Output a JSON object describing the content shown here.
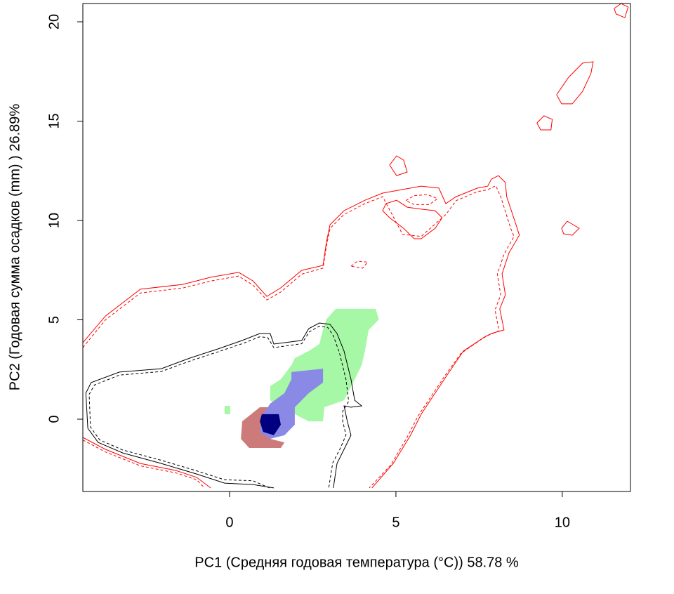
{
  "chart_data": {
    "type": "contour",
    "x_label": "PC1 (Средняя годовая температура (°C)) 58.78 %",
    "y_label": "PC2 (Годовая сумма осадков  (mm) ) 26.89%",
    "xlim": [
      -4.41,
      12.05
    ],
    "ylim": [
      -3.64,
      20.92
    ],
    "xticks": [
      0,
      5,
      10
    ],
    "yticks": [
      0,
      5,
      10,
      15,
      20
    ],
    "series": [
      {
        "color": "#a6f7a6",
        "fill": true,
        "dash": false,
        "x": [
          3.19,
          4.39,
          4.49,
          4.18,
          4.07,
          3.97,
          3.76,
          3.44,
          2.85,
          2.81,
          2.38,
          1.96,
          1.54,
          1.22,
          1.22,
          1.54,
          1.86,
          1.96,
          2.38,
          2.7,
          2.81,
          2.91
        ],
        "y": [
          5.55,
          5.55,
          5.02,
          4.49,
          3.43,
          2.72,
          2.01,
          0.95,
          0.6,
          -0.11,
          -0.11,
          0.25,
          0.6,
          0.95,
          1.66,
          2.01,
          2.72,
          3.07,
          3.43,
          3.78,
          4.49,
          5.02
        ]
      },
      {
        "color": "#a6f7a6",
        "fill": true,
        "dash": false,
        "x": [
          -0.15,
          0.02,
          0.02,
          -0.15
        ],
        "y": [
          0.67,
          0.67,
          0.25,
          0.25
        ]
      },
      {
        "color": "#cc7a7a",
        "fill": true,
        "dash": false,
        "x": [
          0.38,
          0.91,
          1.22,
          1.22,
          1.65,
          1.54,
          0.59,
          0.34
        ],
        "y": [
          -0.11,
          0.6,
          0.6,
          -0.99,
          -1.17,
          -1.45,
          -1.45,
          -0.99
        ]
      },
      {
        "color": "#8a8ae6",
        "fill": true,
        "dash": false,
        "x": [
          1.86,
          2.81,
          2.81,
          2.38,
          1.96,
          1.96,
          1.65,
          1.22,
          0.91,
          1.01,
          1.22,
          1.65,
          1.86
        ],
        "y": [
          2.37,
          2.54,
          1.84,
          1.31,
          0.6,
          -0.28,
          -0.81,
          -0.99,
          -0.64,
          0.25,
          0.78,
          1.31,
          2.01
        ]
      },
      {
        "color": "#000080",
        "fill": true,
        "dash": false,
        "x": [
          0.97,
          1.48,
          1.54,
          1.33,
          1.01,
          0.91
        ],
        "y": [
          0.25,
          0.25,
          -0.28,
          -0.81,
          -0.64,
          -0.11
        ]
      },
      {
        "color": "#ff0000",
        "fill": false,
        "dash": false,
        "x": [
          -4.41,
          -3.73,
          -2.68,
          -1.41,
          -0.57,
          0.27,
          0.7,
          1.12,
          1.54,
          2.17,
          2.81,
          2.91,
          3.02,
          3.44,
          4.07,
          4.6,
          5.76,
          6.29,
          6.5,
          6.81,
          7.45,
          7.76,
          7.87,
          8.08,
          8.29,
          8.33,
          8.61,
          8.71,
          8.4,
          8.19,
          8.29,
          8.12,
          8.25,
          7.87,
          7.66,
          7.03,
          6.6,
          6.18,
          5.76,
          5.44,
          4.92,
          4.28
        ],
        "y": [
          3.85,
          5.19,
          6.54,
          6.78,
          7.14,
          7.39,
          6.96,
          6.18,
          6.61,
          7.49,
          7.74,
          8.9,
          9.79,
          10.49,
          11.02,
          11.38,
          11.73,
          11.63,
          10.85,
          11.2,
          11.63,
          11.73,
          12.08,
          12.26,
          11.91,
          11.2,
          9.79,
          9.26,
          8.37,
          7.31,
          6.25,
          5.55,
          4.49,
          4.31,
          4.13,
          3.43,
          2.37,
          1.31,
          0.25,
          -0.81,
          -2.23,
          -3.46
        ]
      },
      {
        "color": "#ff0000",
        "fill": false,
        "dash": true,
        "x": [
          -4.41,
          -3.73,
          -2.68,
          -1.41,
          -0.57,
          0.27,
          0.7,
          1.12,
          1.54,
          2.17,
          2.81,
          2.91,
          3.02,
          3.44,
          4.07,
          4.6,
          5.2,
          5.76,
          6.5,
          6.81,
          7.45,
          7.76,
          8.0,
          8.15,
          8.45,
          8.55,
          8.25,
          8.05,
          8.15,
          7.98,
          8.1,
          7.75,
          7.55,
          6.95,
          6.5,
          6.08,
          5.66,
          5.34,
          4.85,
          4.2
        ],
        "y": [
          3.6,
          5.0,
          6.35,
          6.6,
          6.95,
          7.2,
          6.75,
          6.0,
          6.4,
          7.3,
          7.6,
          8.7,
          9.6,
          10.3,
          10.85,
          11.2,
          9.3,
          9.2,
          10.3,
          11.0,
          11.45,
          11.55,
          11.75,
          11.2,
          9.6,
          9.2,
          8.3,
          7.3,
          6.25,
          5.5,
          4.45,
          4.2,
          4.0,
          3.3,
          2.25,
          1.2,
          0.15,
          -0.9,
          -2.3,
          -3.46
        ]
      },
      {
        "color": "#ff0000",
        "fill": false,
        "dash": false,
        "x": [
          4.7,
          4.6,
          4.81,
          5.23,
          5.55,
          5.76,
          6.18,
          6.39,
          6.18,
          5.76,
          5.34,
          5.02,
          4.7
        ],
        "y": [
          10.85,
          10.49,
          10.14,
          9.61,
          9.08,
          9.08,
          9.61,
          10.14,
          10.49,
          10.57,
          10.67,
          11.02,
          10.85
        ]
      },
      {
        "color": "#ff0000",
        "fill": false,
        "dash": true,
        "x": [
          5.3,
          5.55,
          5.95,
          6.25,
          6.0,
          5.55,
          5.3
        ],
        "y": [
          11.0,
          11.25,
          11.3,
          11.1,
          10.8,
          10.8,
          11.0
        ]
      },
      {
        "color": "#ff0000",
        "fill": false,
        "dash": true,
        "x": [
          3.65,
          3.85,
          4.15,
          4.0,
          3.65
        ],
        "y": [
          7.7,
          7.95,
          7.9,
          7.6,
          7.7
        ]
      },
      {
        "color": "#ff0000",
        "fill": false,
        "dash": false,
        "x": [
          -4.41,
          -3.73,
          -2.68,
          -1.62,
          -0.99,
          -0.57
        ],
        "y": [
          -0.92,
          -1.52,
          -2.23,
          -2.58,
          -2.93,
          -3.46
        ]
      },
      {
        "color": "#ff0000",
        "fill": false,
        "dash": true,
        "x": [
          -4.41,
          -3.73,
          -2.68,
          -1.62,
          -0.99,
          -0.75
        ],
        "y": [
          -1.05,
          -1.65,
          -2.35,
          -2.7,
          -3.05,
          -3.46
        ]
      },
      {
        "color": "#ff0000",
        "fill": false,
        "dash": false,
        "x": [
          4.81,
          5.02,
          5.23,
          5.34,
          5.02,
          4.81
        ],
        "y": [
          12.79,
          13.25,
          13.04,
          12.44,
          12.26,
          12.79
        ]
      },
      {
        "color": "#ff0000",
        "fill": false,
        "dash": false,
        "x": [
          9.24,
          9.45,
          9.7,
          9.66,
          9.35,
          9.24
        ],
        "y": [
          14.91,
          15.27,
          15.09,
          14.56,
          14.56,
          14.91
        ]
      },
      {
        "color": "#ff0000",
        "fill": false,
        "dash": false,
        "x": [
          9.83,
          10.19,
          10.61,
          10.93,
          10.86,
          10.61,
          10.3,
          9.98,
          9.83
        ],
        "y": [
          16.33,
          17.21,
          17.92,
          17.99,
          17.39,
          16.5,
          15.87,
          15.87,
          16.33
        ]
      },
      {
        "color": "#ff0000",
        "fill": false,
        "dash": false,
        "x": [
          9.98,
          10.15,
          10.51,
          10.3,
          10.04,
          9.98
        ],
        "y": [
          9.61,
          9.96,
          9.61,
          9.26,
          9.33,
          9.61
        ]
      },
      {
        "color": "#ff0000",
        "fill": false,
        "dash": false,
        "x": [
          11.56,
          11.77,
          11.98,
          11.88,
          11.62,
          11.56
        ],
        "y": [
          20.67,
          20.92,
          20.74,
          20.21,
          20.39,
          20.67
        ]
      },
      {
        "color": "#000000",
        "fill": false,
        "dash": false,
        "x": [
          1.33,
          0.7,
          -0.15,
          -0.99,
          -2.05,
          -3.21,
          -3.95,
          -4.26,
          -4.32,
          -4.16,
          -3.31,
          -2.05,
          -1.2,
          -0.36,
          0.38,
          0.91,
          1.22,
          1.33,
          2.17,
          2.38,
          2.7,
          3.02,
          3.23,
          3.44,
          3.65,
          3.76,
          3.97,
          3.65,
          3.44,
          3.54,
          3.65,
          3.44,
          3.23,
          3.12
        ],
        "y": [
          -3.46,
          -3.29,
          -3.22,
          -2.76,
          -2.23,
          -1.7,
          -1.17,
          -0.46,
          1.31,
          1.84,
          2.37,
          2.54,
          3.07,
          3.53,
          3.96,
          4.31,
          4.31,
          3.78,
          3.96,
          4.56,
          4.84,
          4.77,
          4.31,
          3.43,
          2.01,
          0.95,
          0.67,
          0.6,
          0.67,
          -0.11,
          -0.81,
          -1.52,
          -2.23,
          -3.46
        ]
      },
      {
        "color": "#000000",
        "fill": false,
        "dash": true,
        "x": [
          1.2,
          0.7,
          -0.15,
          -0.99,
          -2.05,
          -3.21,
          -3.9,
          -4.18,
          -4.22,
          -4.06,
          -3.31,
          -2.05,
          -1.2,
          -0.36,
          0.38,
          0.91,
          1.15,
          1.33,
          2.17,
          2.4,
          2.7,
          2.95,
          3.12,
          3.3,
          3.5,
          3.58,
          3.4,
          3.4,
          3.5,
          3.32,
          3.1,
          2.98
        ],
        "y": [
          -3.46,
          -3.1,
          -3.05,
          -2.6,
          -2.07,
          -1.55,
          -1.05,
          -0.4,
          1.25,
          1.72,
          2.22,
          2.4,
          2.92,
          3.38,
          3.8,
          4.15,
          4.1,
          3.6,
          3.8,
          4.4,
          4.68,
          4.62,
          4.2,
          3.35,
          2.0,
          0.9,
          0.4,
          -0.1,
          -0.8,
          -1.5,
          -2.2,
          -3.46
        ]
      }
    ]
  }
}
